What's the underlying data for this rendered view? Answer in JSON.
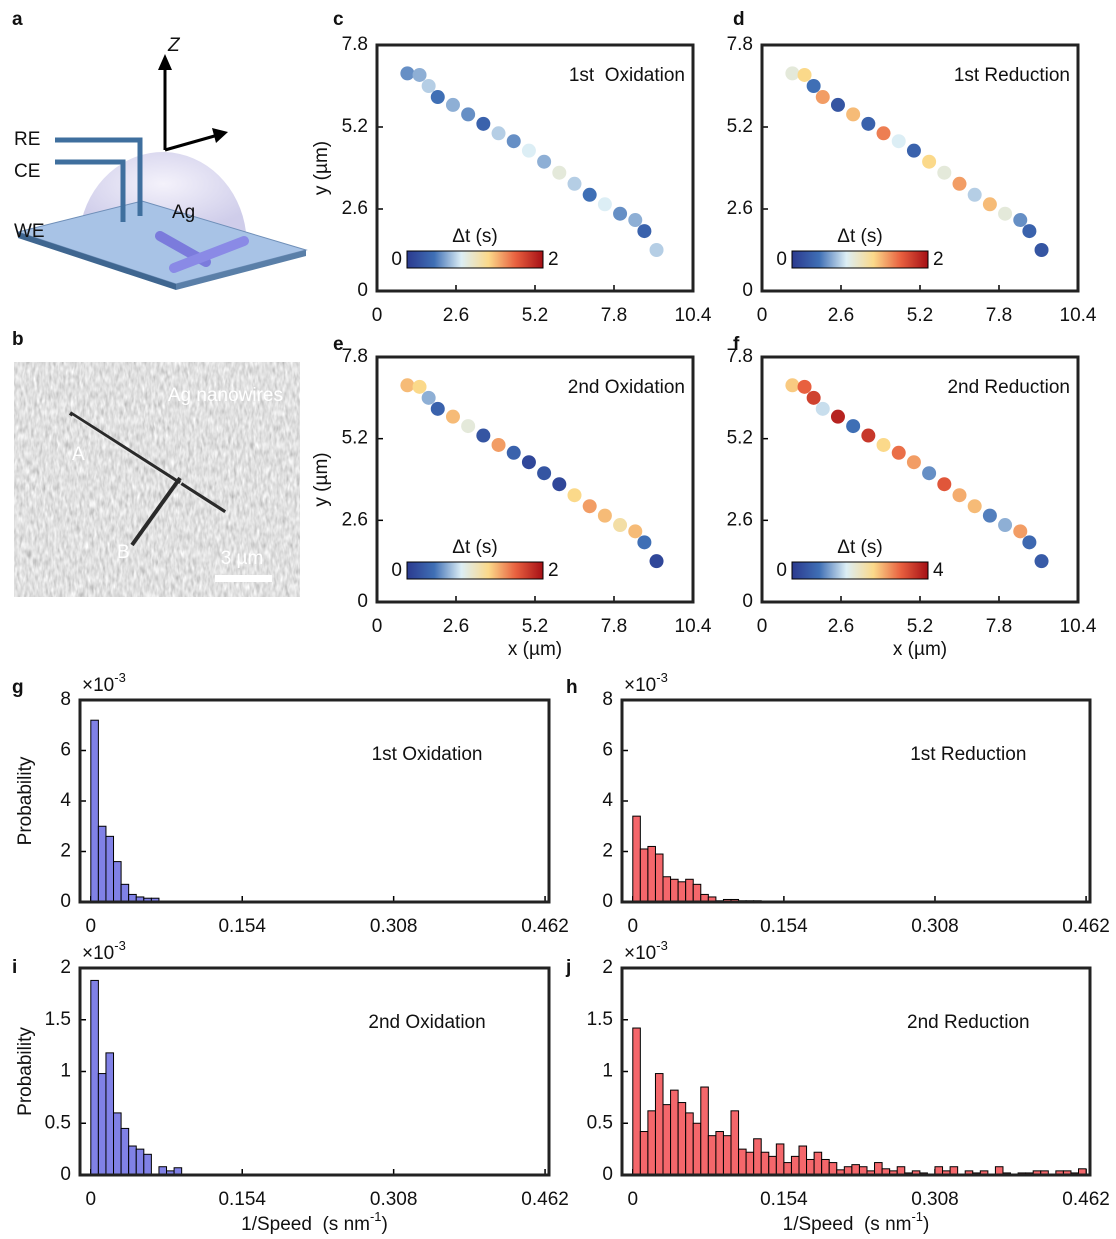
{
  "panels": [
    "a",
    "b",
    "c",
    "d",
    "e",
    "f",
    "g",
    "h",
    "i",
    "j"
  ],
  "schematic": {
    "axis": "Z",
    "electrodes": [
      "RE",
      "CE",
      "WE"
    ],
    "sample": "Ag"
  },
  "micrograph": {
    "title": "Ag nanowires",
    "wires": [
      "A",
      "B"
    ],
    "scale_bar": "3 µm"
  },
  "chart_data": [
    {
      "type": "scatter",
      "title": "1st  Oxidation",
      "ylabel": "y (µm)",
      "x": [
        1.0,
        1.4,
        1.7,
        2.0,
        2.5,
        3.0,
        3.5,
        4.0,
        4.5,
        5.0,
        5.5,
        6.0,
        6.5,
        7.0,
        7.5,
        8.0,
        8.5,
        8.8,
        9.2
      ],
      "y": [
        6.9,
        6.85,
        6.5,
        6.15,
        5.9,
        5.6,
        5.3,
        5.0,
        4.75,
        4.45,
        4.1,
        3.75,
        3.4,
        3.05,
        2.75,
        2.45,
        2.25,
        1.9,
        1.3
      ],
      "values": [
        0.5,
        0.6,
        0.7,
        0.4,
        0.6,
        0.5,
        0.3,
        0.7,
        0.5,
        0.8,
        0.6,
        0.9,
        0.7,
        0.4,
        0.8,
        0.5,
        0.6,
        0.3,
        0.7
      ],
      "xlim": [
        0,
        10.4
      ],
      "ylim": [
        0,
        7.8
      ],
      "xticks": [
        0,
        2.6,
        5.2,
        7.8,
        10.4
      ],
      "yticks": [
        0,
        2.6,
        5.2,
        7.8
      ],
      "colorbar_label": "Δt (s)",
      "clim": [
        0,
        2
      ],
      "cticks": [
        0,
        2
      ],
      "colormap": [
        "#2b3a8f",
        "#3f6fb5",
        "#dceef5",
        "#fbd98a",
        "#e8603f",
        "#a50f15"
      ]
    },
    {
      "type": "scatter",
      "title": "1st Reduction",
      "x": [
        1.0,
        1.4,
        1.7,
        2.0,
        2.5,
        3.0,
        3.5,
        4.0,
        4.5,
        5.0,
        5.5,
        6.0,
        6.5,
        7.0,
        7.5,
        8.0,
        8.5,
        8.8,
        9.2
      ],
      "y": [
        6.9,
        6.85,
        6.5,
        6.15,
        5.9,
        5.6,
        5.3,
        5.0,
        4.75,
        4.45,
        4.1,
        3.75,
        3.4,
        3.05,
        2.75,
        2.45,
        2.25,
        1.9,
        1.3
      ],
      "values": [
        0.9,
        1.2,
        0.4,
        1.4,
        0.2,
        1.3,
        0.3,
        1.5,
        0.8,
        0.3,
        1.2,
        0.9,
        1.4,
        0.7,
        1.3,
        0.9,
        0.5,
        0.3,
        0.2
      ],
      "xlim": [
        0,
        10.4
      ],
      "ylim": [
        0,
        7.8
      ],
      "xticks": [
        0,
        2.6,
        5.2,
        7.8,
        10.4
      ],
      "yticks": [
        0,
        2.6,
        5.2,
        7.8
      ],
      "colorbar_label": "Δt (s)",
      "clim": [
        0,
        2
      ],
      "cticks": [
        0,
        2
      ],
      "colormap": [
        "#2b3a8f",
        "#3f6fb5",
        "#dceef5",
        "#fbd98a",
        "#e8603f",
        "#a50f15"
      ]
    },
    {
      "type": "scatter",
      "title": "2nd Oxidation",
      "xlabel": "x (µm)",
      "ylabel": "y (µm)",
      "x": [
        1.0,
        1.4,
        1.7,
        2.0,
        2.5,
        3.0,
        3.5,
        4.0,
        4.5,
        5.0,
        5.5,
        6.0,
        6.5,
        7.0,
        7.5,
        8.0,
        8.5,
        8.8,
        9.2
      ],
      "y": [
        6.9,
        6.85,
        6.5,
        6.15,
        5.9,
        5.6,
        5.3,
        5.0,
        4.75,
        4.45,
        4.1,
        3.75,
        3.4,
        3.05,
        2.75,
        2.45,
        2.25,
        1.9,
        1.3
      ],
      "values": [
        1.3,
        1.2,
        0.6,
        0.3,
        1.3,
        0.9,
        0.2,
        1.4,
        0.3,
        0.1,
        0.2,
        0.1,
        1.2,
        1.4,
        1.3,
        1.1,
        1.3,
        0.4,
        0.1
      ],
      "xlim": [
        0,
        10.4
      ],
      "ylim": [
        0,
        7.8
      ],
      "xticks": [
        0,
        2.6,
        5.2,
        7.8,
        10.4
      ],
      "yticks": [
        0,
        2.6,
        5.2,
        7.8
      ],
      "colorbar_label": "Δt (s)",
      "clim": [
        0,
        2
      ],
      "cticks": [
        0,
        2
      ],
      "colormap": [
        "#2b3a8f",
        "#3f6fb5",
        "#dceef5",
        "#fbd98a",
        "#e8603f",
        "#a50f15"
      ]
    },
    {
      "type": "scatter",
      "title": "2nd Reduction",
      "xlabel": "x (µm)",
      "x": [
        1.0,
        1.4,
        1.7,
        2.0,
        2.5,
        3.0,
        3.5,
        4.0,
        4.5,
        5.0,
        5.5,
        6.0,
        6.5,
        7.0,
        7.5,
        8.0,
        8.5,
        8.8,
        9.2
      ],
      "y": [
        6.9,
        6.85,
        6.5,
        6.15,
        5.9,
        5.6,
        5.3,
        5.0,
        4.75,
        4.45,
        4.1,
        3.75,
        3.4,
        3.05,
        2.75,
        2.45,
        2.25,
        1.9,
        1.3
      ],
      "values": [
        2.5,
        3.2,
        3.5,
        1.5,
        3.8,
        0.8,
        3.6,
        2.4,
        3.1,
        2.8,
        1.0,
        3.3,
        2.7,
        2.6,
        0.9,
        1.2,
        2.8,
        0.7,
        0.5
      ],
      "xlim": [
        0,
        10.4
      ],
      "ylim": [
        0,
        7.8
      ],
      "xticks": [
        0,
        2.6,
        5.2,
        7.8,
        10.4
      ],
      "yticks": [
        0,
        2.6,
        5.2,
        7.8
      ],
      "colorbar_label": "Δt (s)",
      "clim": [
        0,
        4
      ],
      "cticks": [
        0,
        4
      ],
      "colormap": [
        "#2b3a8f",
        "#3f6fb5",
        "#dceef5",
        "#fbd98a",
        "#e8603f",
        "#a50f15"
      ]
    },
    {
      "type": "histogram",
      "title": "1st Oxidation",
      "ylabel": "Probability",
      "multiplier": "×10",
      "multiplier_exponent": "-3",
      "color": "#8081e6",
      "bins": [
        0,
        0.0077,
        0.0154,
        0.0231,
        0.0308,
        0.0385,
        0.0462,
        0.0539,
        0.0616,
        0.0693
      ],
      "values": [
        7.2,
        3.0,
        2.6,
        1.6,
        0.7,
        0.3,
        0.2,
        0.15,
        0.15
      ],
      "xlim": [
        -0.011,
        0.466
      ],
      "ylim": [
        0,
        8
      ],
      "xticks": [
        0,
        0.154,
        0.308,
        0.462
      ],
      "yticks": [
        0,
        2,
        4,
        6,
        8
      ]
    },
    {
      "type": "histogram",
      "title": "1st Reduction",
      "multiplier": "×10",
      "multiplier_exponent": "-3",
      "color": "#f4676b",
      "bins": [
        0,
        0.0077,
        0.0154,
        0.0231,
        0.0308,
        0.0385,
        0.0462,
        0.0539,
        0.0616,
        0.0693,
        0.077,
        0.0847,
        0.0924,
        0.1001,
        0.1078,
        0.1155,
        0.1232,
        0.1309
      ],
      "values": [
        3.4,
        2.1,
        2.2,
        1.9,
        1.0,
        0.9,
        0.8,
        0.9,
        0.7,
        0.3,
        0.2,
        0.05,
        0.1,
        0.1,
        0.05,
        0.05,
        0.05
      ],
      "xlim": [
        -0.011,
        0.466
      ],
      "ylim": [
        0,
        8
      ],
      "xticks": [
        0,
        0.154,
        0.308,
        0.462
      ],
      "yticks": [
        0,
        2,
        4,
        6,
        8
      ]
    },
    {
      "type": "histogram",
      "title": "2nd Oxidation",
      "ylabel": "Probability",
      "multiplier": "×10",
      "multiplier_exponent": "-3",
      "color": "#8081e6",
      "xlabel": "1/Speed  (s nm",
      "xlabel_exponent": "-1",
      "xlabel_end": ")",
      "bins": [
        0,
        0.0077,
        0.0154,
        0.0231,
        0.0308,
        0.0385,
        0.0462,
        0.0539,
        0.0616,
        0.0693,
        0.077,
        0.0847,
        0.0924
      ],
      "values": [
        1.88,
        0.98,
        1.18,
        0.6,
        0.45,
        0.28,
        0.25,
        0.2,
        0,
        0.08,
        0.04,
        0.07
      ],
      "xlim": [
        -0.011,
        0.466
      ],
      "ylim": [
        0,
        2
      ],
      "xticks": [
        0,
        0.154,
        0.308,
        0.462
      ],
      "yticks": [
        0,
        0.5,
        1,
        1.5,
        2
      ]
    },
    {
      "type": "histogram",
      "title": "2nd Reduction",
      "multiplier": "×10",
      "multiplier_exponent": "-3",
      "color": "#f4676b",
      "xlabel": "1/Speed  (s nm",
      "xlabel_exponent": "-1",
      "xlabel_end": ")",
      "bins": [
        0,
        0.0077,
        0.0154,
        0.0231,
        0.0308,
        0.0385,
        0.0462,
        0.0539,
        0.0616,
        0.0693,
        0.077,
        0.0847,
        0.0924,
        0.1001,
        0.1078,
        0.1155,
        0.1232,
        0.1309,
        0.1386,
        0.1463,
        0.154,
        0.1617,
        0.1694,
        0.1771,
        0.1848,
        0.1925,
        0.2002,
        0.2079,
        0.2156,
        0.2233,
        0.231,
        0.2387,
        0.2464,
        0.2541,
        0.2618,
        0.2695,
        0.2772,
        0.2849,
        0.2926,
        0.3003,
        0.308,
        0.3157,
        0.3234,
        0.3311,
        0.3388,
        0.3465,
        0.3542,
        0.3619,
        0.3696,
        0.3773,
        0.385,
        0.3927,
        0.4004,
        0.4081,
        0.4158,
        0.4235,
        0.4312,
        0.4389,
        0.4466,
        0.4543,
        0.462
      ],
      "values": [
        1.42,
        0.42,
        0.62,
        0.98,
        0.68,
        0.82,
        0.7,
        0.6,
        0.5,
        0.85,
        0.38,
        0.42,
        0.38,
        0.62,
        0.25,
        0.22,
        0.35,
        0.22,
        0.18,
        0.3,
        0.12,
        0.18,
        0.28,
        0.15,
        0.22,
        0.15,
        0.12,
        0.05,
        0.08,
        0.1,
        0.08,
        0.04,
        0.12,
        0.06,
        0.04,
        0.08,
        0.02,
        0.04,
        0.02,
        0,
        0.08,
        0.04,
        0.08,
        0,
        0.04,
        0.02,
        0.04,
        0,
        0.08,
        0.02,
        0,
        0.02,
        0.02,
        0.04,
        0.04,
        0,
        0.04,
        0.04,
        0.02,
        0.06
      ],
      "xlim": [
        -0.011,
        0.466
      ],
      "ylim": [
        0,
        2
      ],
      "xticks": [
        0,
        0.154,
        0.308,
        0.462
      ],
      "yticks": [
        0,
        0.5,
        1,
        1.5,
        2
      ]
    }
  ]
}
